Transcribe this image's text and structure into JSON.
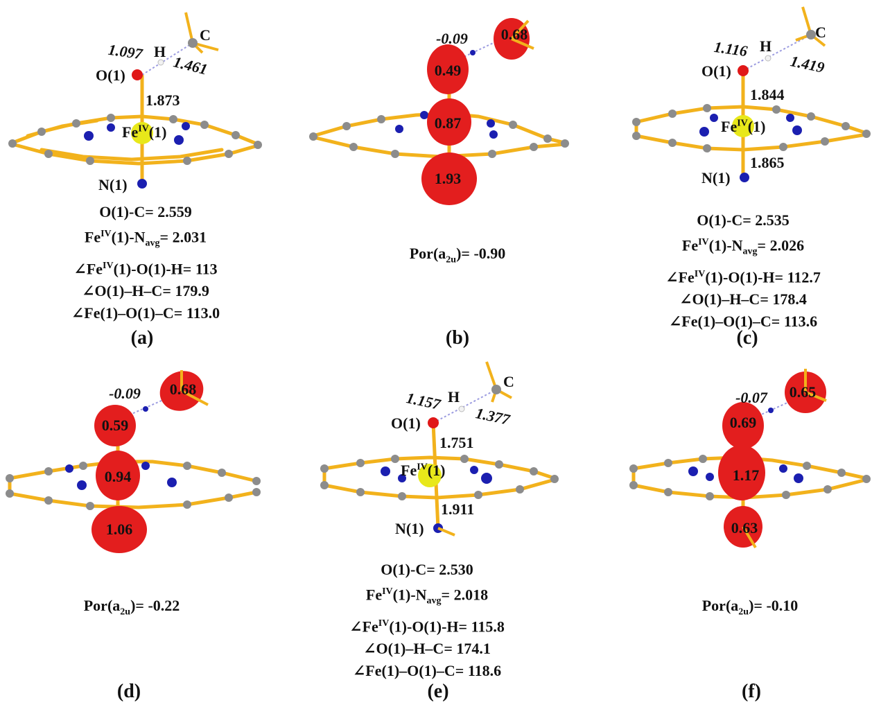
{
  "panels": [
    {
      "id": "a",
      "tag": "(a)",
      "atoms": {
        "C": "C",
        "H": "H",
        "O": "O(1)",
        "Fe": "Fe",
        "Fe_sup": "IV",
        "Fe_suffix": "(1)",
        "N": "N(1)"
      },
      "bonds": {
        "OH": "1.097",
        "HC": "1.461",
        "FeO": "1.873"
      },
      "params": [
        {
          "label": "O(1)-C= ",
          "value": "2.559"
        },
        {
          "label": "Fe",
          "sup": "IV",
          "mid": "(1)-N",
          "sub": "avg",
          "tail": "= ",
          "value": "2.031"
        },
        {
          "label": "∠Fe",
          "sup": "IV",
          "mid": "(1)-O(1)-H= ",
          "value": "113"
        },
        {
          "label": "∠O(1)–H–C= ",
          "value": "179.9"
        },
        {
          "label": "∠Fe(1)–O(1)–C= ",
          "value": "113.0"
        }
      ]
    },
    {
      "id": "b",
      "tag": "(b)",
      "spins": {
        "H": "-0.09",
        "C": "0.68",
        "O": "0.49",
        "Fe": "0.87",
        "N": "1.93"
      },
      "por": {
        "label": "Por(a",
        "sub": "2u",
        "tail": ")= ",
        "value": "-0.90"
      }
    },
    {
      "id": "c",
      "tag": "(c)",
      "atoms": {
        "C": "C",
        "H": "H",
        "O": "O(1)",
        "Fe": "Fe",
        "Fe_sup": "IV",
        "Fe_suffix": "(1)",
        "N": "N(1)"
      },
      "bonds": {
        "OH": "1.116",
        "HC": "1.419",
        "FeO": "1.844",
        "FeN": "1.865"
      },
      "params": [
        {
          "label": "O(1)-C= ",
          "value": "2.535"
        },
        {
          "label": "Fe",
          "sup": "IV",
          "mid": "(1)-N",
          "sub": "avg",
          "tail": "= ",
          "value": "2.026"
        },
        {
          "label": "∠Fe",
          "sup": "IV",
          "mid": "(1)-O(1)-H= ",
          "value": "112.7"
        },
        {
          "label": "∠O(1)–H–C= ",
          "value": "178.4"
        },
        {
          "label": "∠Fe(1)–O(1)–C= ",
          "value": "113.6"
        }
      ]
    },
    {
      "id": "d",
      "tag": "(d)",
      "spins": {
        "H": "-0.09",
        "C": "0.68",
        "O": "0.59",
        "Fe": "0.94",
        "N": "1.06"
      },
      "por": {
        "label": "Por(a",
        "sub": "2u",
        "tail": ")= ",
        "value": "-0.22"
      }
    },
    {
      "id": "e",
      "tag": "(e)",
      "atoms": {
        "C": "C",
        "H": "H",
        "O": "O(1)",
        "Fe": "Fe",
        "Fe_sup": "IV",
        "Fe_suffix": "(1)",
        "N": "N(1)"
      },
      "bonds": {
        "OH": "1.157",
        "HC": "1.377",
        "FeO": "1.751",
        "FeN": "1.911"
      },
      "params": [
        {
          "label": "O(1)-C= ",
          "value": "2.530"
        },
        {
          "label": "Fe",
          "sup": "IV",
          "mid": "(1)-N",
          "sub": "avg",
          "tail": "= ",
          "value": "2.018"
        },
        {
          "label": "∠Fe",
          "sup": "IV",
          "mid": "(1)-O(1)-H= ",
          "value": "115.8"
        },
        {
          "label": "∠O(1)–H–C= ",
          "value": "174.1"
        },
        {
          "label": "∠Fe(1)–O(1)–C= ",
          "value": "118.6"
        }
      ]
    },
    {
      "id": "f",
      "tag": "(f)",
      "spins": {
        "H": "-0.07",
        "C": "0.65",
        "O": "0.69",
        "Fe": "1.17",
        "N": "0.63"
      },
      "por": {
        "label": "Por(a",
        "sub": "2u",
        "tail": ")= ",
        "value": "-0.10"
      }
    }
  ],
  "colors": {
    "bond": "#f2b21c",
    "carbon": "#8c8c8c",
    "nitrogen": "#1b1fb0",
    "oxygen": "#e01818",
    "iron": "#e8e81a",
    "hydrogen": "#f2f2f2",
    "spin_density": "#e31e1e",
    "hbond": "#9c9ce0"
  }
}
